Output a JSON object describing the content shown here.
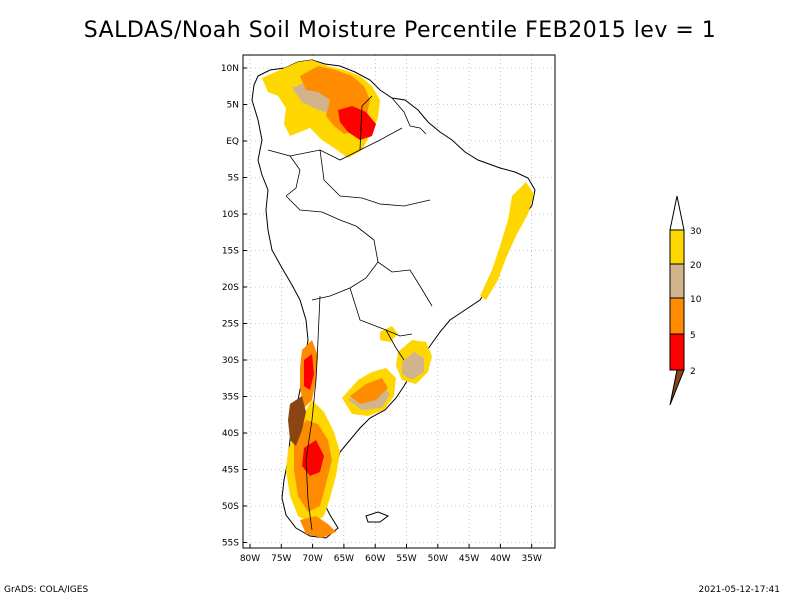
{
  "title": "SALDAS/Noah Soil Moisture Percentile FEB2015 lev = 1",
  "map": {
    "lat_labels": [
      "10N",
      "5N",
      "EQ",
      "5S",
      "10S",
      "15S",
      "20S",
      "25S",
      "30S",
      "35S",
      "40S",
      "45S",
      "50S",
      "55S"
    ],
    "lon_labels": [
      "80W",
      "75W",
      "70W",
      "65W",
      "60W",
      "55W",
      "50W",
      "45W",
      "40W",
      "35W"
    ]
  },
  "colorbar": {
    "labels": [
      "2",
      "5",
      "10",
      "20",
      "30"
    ],
    "colors": {
      "brown": "#8b4513",
      "red": "#ff0000",
      "orange": "#ff8c00",
      "tan": "#d2b48c",
      "gold": "#ffd700",
      "white": "#ffffff"
    }
  },
  "footer": {
    "left": "GrADS: COLA/IGES",
    "right": "2021-05-12-17:41"
  }
}
